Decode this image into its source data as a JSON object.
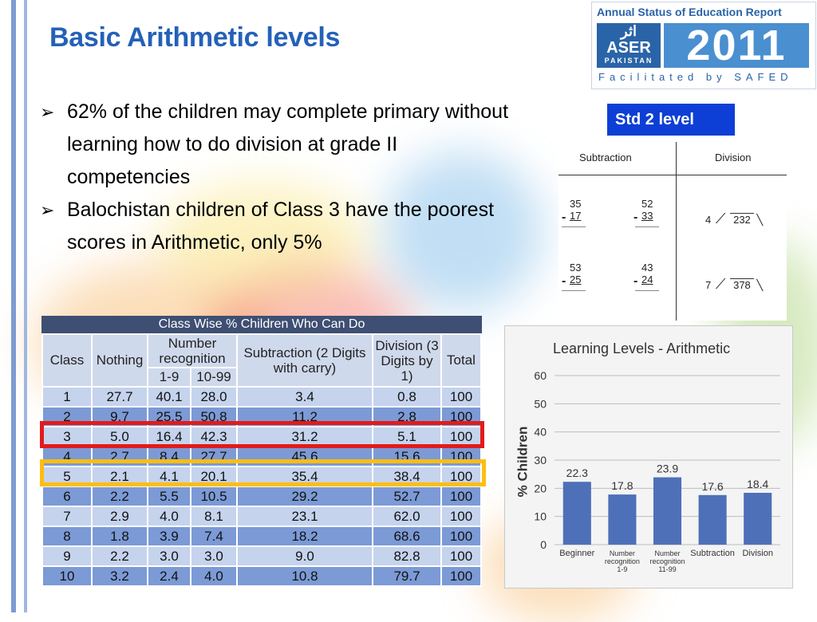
{
  "title": "Basic Arithmetic levels",
  "logo": {
    "top_text": "Annual Status of Education Report",
    "urdu": "اثر",
    "aser": "ASER",
    "country": "PAKISTAN",
    "year": "2011",
    "facilitated": "Facilitated by SAFED"
  },
  "bullets": [
    "62% of the children may complete primary without learning how to do division at grade II competencies",
    "Balochistan children of Class 3  have the poorest scores in Arithmetic, only 5%"
  ],
  "bullet_marker": "➢",
  "std_level": {
    "label": "Std  2 level",
    "headers": [
      "Subtraction",
      "Division"
    ],
    "problems": [
      {
        "top": "35",
        "bottom": "17"
      },
      {
        "top": "52",
        "bottom": "33"
      },
      {
        "top": "53",
        "bottom": "25"
      },
      {
        "top": "43",
        "bottom": "24"
      }
    ],
    "divisions": [
      {
        "divisor": "4",
        "dividend": "232"
      },
      {
        "divisor": "7",
        "dividend": "378"
      }
    ],
    "minus": "-"
  },
  "class_table": {
    "title": "Class Wise % Children Who Can Do",
    "headers": {
      "class": "Class",
      "nothing": "Nothing",
      "number_recognition": "Number recognition",
      "nr_1_9": "1-9",
      "nr_10_99": "10-99",
      "subtraction": "Subtraction (2 Digits with carry)",
      "division": "Division (3 Digits by 1)",
      "total": "Total"
    },
    "rows": [
      [
        "1",
        "27.7",
        "40.1",
        "28.0",
        "3.4",
        "0.8",
        "100"
      ],
      [
        "2",
        "9.7",
        "25.5",
        "50.8",
        "11.2",
        "2.8",
        "100"
      ],
      [
        "3",
        "5.0",
        "16.4",
        "42.3",
        "31.2",
        "5.1",
        "100"
      ],
      [
        "4",
        "2.7",
        "8.4",
        "27.7",
        "45.6",
        "15.6",
        "100"
      ],
      [
        "5",
        "2.1",
        "4.1",
        "20.1",
        "35.4",
        "38.4",
        "100"
      ],
      [
        "6",
        "2.2",
        "5.5",
        "10.5",
        "29.2",
        "52.7",
        "100"
      ],
      [
        "7",
        "2.9",
        "4.0",
        "8.1",
        "23.1",
        "62.0",
        "100"
      ],
      [
        "8",
        "1.8",
        "3.9",
        "7.4",
        "18.2",
        "68.6",
        "100"
      ],
      [
        "9",
        "2.2",
        "3.0",
        "3.0",
        "9.0",
        "82.8",
        "100"
      ],
      [
        "10",
        "3.2",
        "2.4",
        "4.0",
        "10.8",
        "79.7",
        "100"
      ]
    ],
    "highlighted_classes": {
      "red": "3",
      "yellow": "5"
    }
  },
  "chart_data": {
    "type": "bar",
    "title": "Learning Levels - Arithmetic",
    "ylabel": "% Children",
    "xlabel": "",
    "categories": [
      "Beginner",
      "Number recognition 1-9",
      "Number recognition 11-99",
      "Subtraction",
      "Division"
    ],
    "category_lines": [
      [
        "Beginner"
      ],
      [
        "Number",
        "recognition",
        "1-9"
      ],
      [
        "Number",
        "recognition",
        "11-99"
      ],
      [
        "Subtraction"
      ],
      [
        "Division"
      ]
    ],
    "values": [
      22.3,
      17.8,
      23.9,
      17.6,
      18.4
    ],
    "ylim": [
      0,
      60
    ],
    "yticks": [
      0,
      10,
      20,
      30,
      40,
      50,
      60
    ],
    "grid": true,
    "bar_color": "#4e70b8"
  },
  "colors": {
    "title": "#2461b8",
    "std_label_bg": "#0d3fd6",
    "highlight_red": "#e21b1b",
    "highlight_yellow": "#ffbd0f"
  }
}
